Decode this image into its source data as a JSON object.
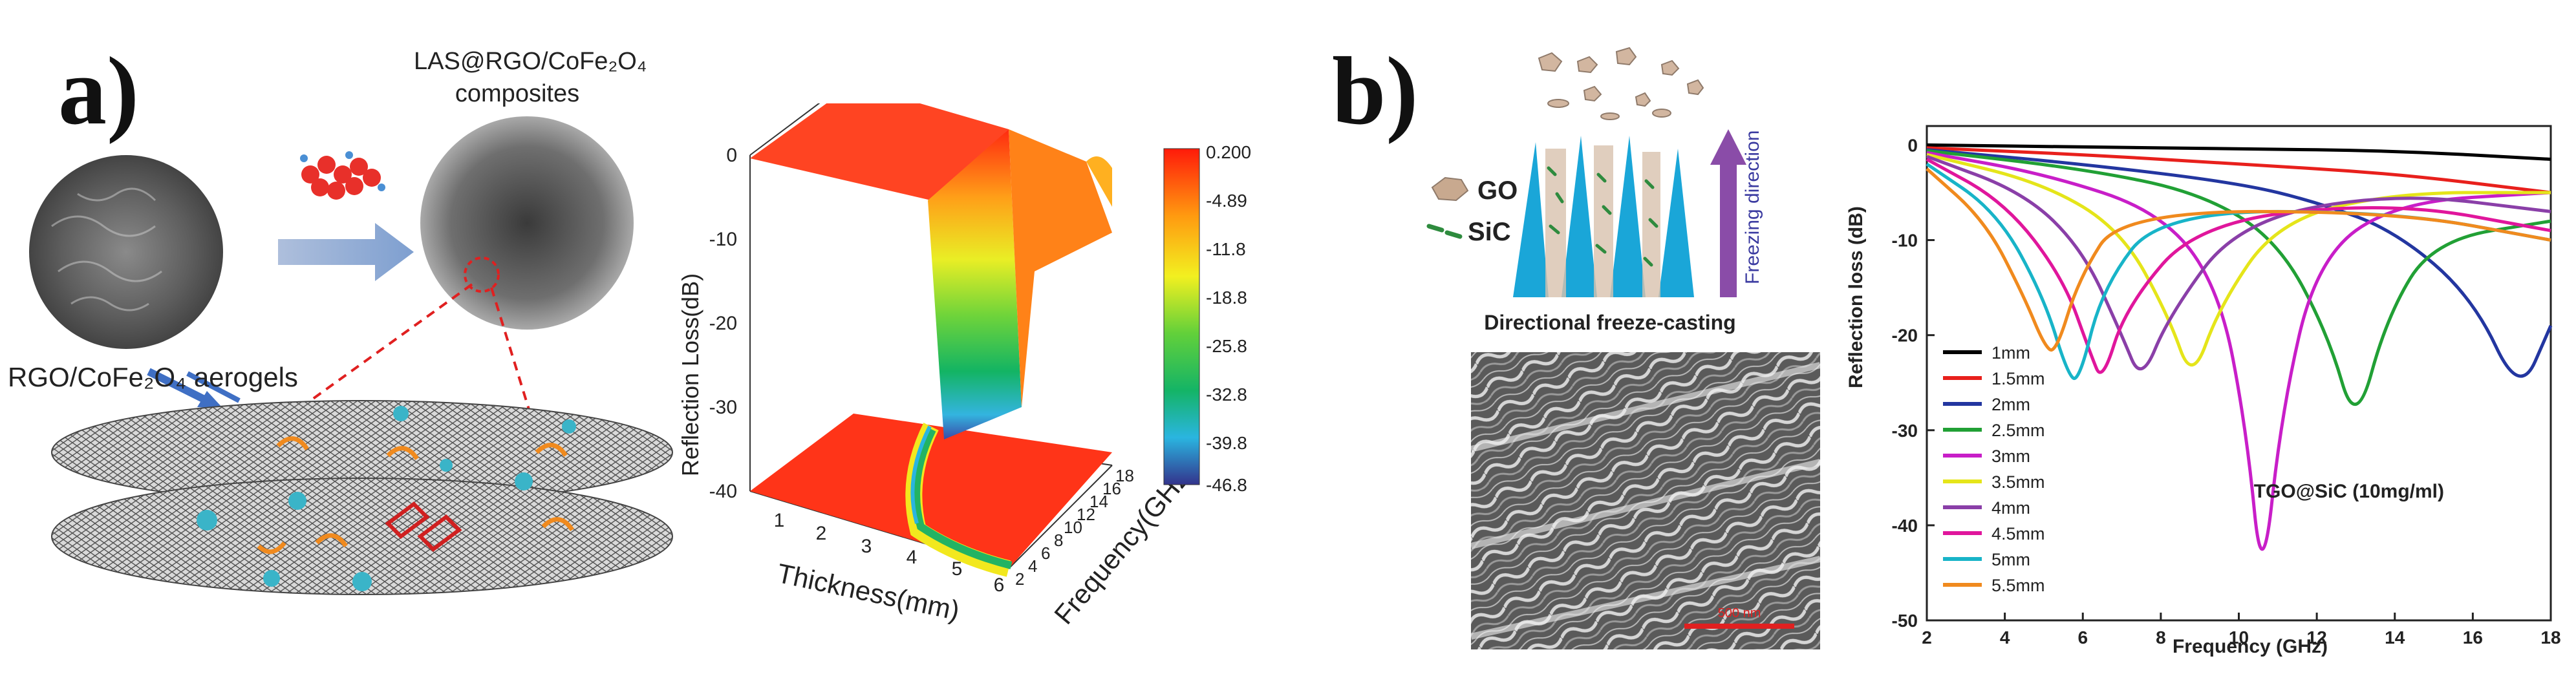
{
  "panel_a": {
    "letter": "a)",
    "label_top_line1": "LAS@RGO/CoFe₂O₄",
    "label_top_line2": "composites",
    "label_aerogel": "RGO/CoFe₂O₄ aerogels",
    "plot3d": {
      "zlabel": "Reflection Loss(dB)",
      "xlabel": "Thickness(mm)",
      "ylabel": "Frequency(GHz)",
      "z_ticks": [
        "0",
        "-10",
        "-20",
        "-30",
        "-40"
      ],
      "x_ticks": [
        "1",
        "2",
        "3",
        "4",
        "5",
        "6"
      ],
      "y_ticks": [
        "2",
        "4",
        "6",
        "8",
        "10",
        "12",
        "14",
        "16",
        "18"
      ],
      "colorbar": [
        "0.200",
        "-4.89",
        "-11.8",
        "-18.8",
        "-25.8",
        "-32.8",
        "-39.8",
        "-46.8"
      ]
    }
  },
  "panel_b": {
    "letter": "b)",
    "legend_go": "GO",
    "legend_sic": "SiC",
    "freeze_direction": "Freezing direction",
    "caption": "Directional freeze-casting",
    "scale_label": "500 nm",
    "colors": {
      "go": "#c8a98f",
      "sic": "#2e8b3e",
      "cone": "#1aa6d8",
      "arrow": "#8a4ca8"
    }
  },
  "chart_data": {
    "type": "line",
    "title": "",
    "annotation": "TGO@SiC (10mg/ml)",
    "xlabel": "Frequency (GHz)",
    "ylabel": "Reflection loss (dB)",
    "xlim": [
      2,
      18
    ],
    "ylim": [
      -50,
      2
    ],
    "x_ticks": [
      2,
      4,
      6,
      8,
      10,
      12,
      14,
      16,
      18
    ],
    "y_ticks": [
      0,
      -10,
      -20,
      -30,
      -40,
      -50
    ],
    "legend_position": "left",
    "grid": false,
    "series": [
      {
        "name": "1mm",
        "color": "#000000",
        "points": [
          [
            2,
            0
          ],
          [
            6,
            -0.2
          ],
          [
            10,
            -0.4
          ],
          [
            14,
            -0.6
          ],
          [
            18,
            -1.5
          ]
        ]
      },
      {
        "name": "1.5mm",
        "color": "#e8201c",
        "points": [
          [
            2,
            -0.3
          ],
          [
            6,
            -1
          ],
          [
            10,
            -2
          ],
          [
            14,
            -3
          ],
          [
            18,
            -5
          ]
        ]
      },
      {
        "name": "2mm",
        "color": "#2336a0",
        "points": [
          [
            2,
            -0.5
          ],
          [
            6,
            -2
          ],
          [
            10,
            -4
          ],
          [
            12,
            -6
          ],
          [
            14,
            -9
          ],
          [
            16,
            -16
          ],
          [
            17.2,
            -26.5
          ],
          [
            18,
            -19
          ]
        ]
      },
      {
        "name": "2.5mm",
        "color": "#21a035",
        "points": [
          [
            2,
            -0.6
          ],
          [
            6,
            -2.5
          ],
          [
            9,
            -5
          ],
          [
            11,
            -10
          ],
          [
            12.3,
            -20
          ],
          [
            13,
            -30
          ],
          [
            13.8,
            -18
          ],
          [
            15,
            -10
          ],
          [
            18,
            -8
          ]
        ]
      },
      {
        "name": "3mm",
        "color": "#c81ec8",
        "points": [
          [
            2,
            -0.8
          ],
          [
            5,
            -3
          ],
          [
            8,
            -7
          ],
          [
            9.5,
            -15
          ],
          [
            10.2,
            -30
          ],
          [
            10.6,
            -47
          ],
          [
            11.1,
            -28
          ],
          [
            12,
            -12
          ],
          [
            14,
            -6
          ],
          [
            18,
            -5
          ]
        ]
      },
      {
        "name": "3.5mm",
        "color": "#e5e51a",
        "points": [
          [
            2,
            -1
          ],
          [
            5,
            -4
          ],
          [
            7,
            -9
          ],
          [
            8.2,
            -18
          ],
          [
            8.8,
            -25
          ],
          [
            9.5,
            -17
          ],
          [
            11,
            -8
          ],
          [
            14,
            -5
          ],
          [
            18,
            -5
          ]
        ]
      },
      {
        "name": "4mm",
        "color": "#8a3fa8",
        "points": [
          [
            2,
            -1.2
          ],
          [
            4.5,
            -5
          ],
          [
            6,
            -11
          ],
          [
            7,
            -20
          ],
          [
            7.5,
            -25
          ],
          [
            8.2,
            -18
          ],
          [
            10,
            -8
          ],
          [
            14,
            -5
          ],
          [
            18,
            -7
          ]
        ]
      },
      {
        "name": "4.5mm",
        "color": "#e0169c",
        "points": [
          [
            2,
            -1.5
          ],
          [
            4,
            -6
          ],
          [
            5.5,
            -14
          ],
          [
            6.2,
            -22
          ],
          [
            6.5,
            -25
          ],
          [
            7.1,
            -17
          ],
          [
            9,
            -8
          ],
          [
            14,
            -6
          ],
          [
            18,
            -9
          ]
        ]
      },
      {
        "name": "5mm",
        "color": "#18b4c8",
        "points": [
          [
            2,
            -2
          ],
          [
            3.8,
            -7
          ],
          [
            5,
            -16
          ],
          [
            5.6,
            -24
          ],
          [
            5.9,
            -25
          ],
          [
            6.5,
            -15
          ],
          [
            8,
            -7
          ],
          [
            14,
            -7
          ],
          [
            18,
            -10
          ]
        ]
      },
      {
        "name": "5.5mm",
        "color": "#f08a1e",
        "points": [
          [
            2,
            -2.5
          ],
          [
            3.5,
            -8
          ],
          [
            4.5,
            -16
          ],
          [
            5,
            -21
          ],
          [
            5.3,
            -22
          ],
          [
            5.9,
            -14
          ],
          [
            7,
            -7
          ],
          [
            14,
            -7
          ],
          [
            18,
            -10
          ]
        ]
      }
    ]
  }
}
